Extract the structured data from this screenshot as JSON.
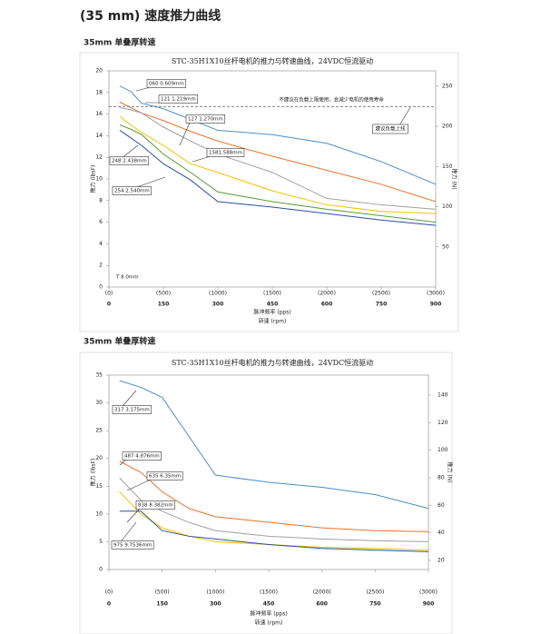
{
  "header": {
    "title": "(35 mm) 速度推力曲线"
  },
  "chart_data": [
    {
      "type": "line",
      "subtitle": "35mm 单叠厚转速",
      "title": "STC-35H1X10丝杆电机的推力与转速曲线，24VDC恒流驱动",
      "x_label": "脉冲频率 (pps)",
      "x2_label": "转速 (rpm)",
      "y_label": "推力 (lbsF)",
      "y2_label": "推力 (N)",
      "x": [
        100,
        200,
        300,
        500,
        750,
        1000,
        1500,
        2000,
        2500,
        3000
      ],
      "xlim": [
        0,
        3000
      ],
      "xticks": [
        {
          "value": 0,
          "label": "(0)"
        },
        {
          "value": 500,
          "label": "(500)"
        },
        {
          "value": 1000,
          "label": "(1000)"
        },
        {
          "value": 1500,
          "label": "(1500)"
        },
        {
          "value": 2000,
          "label": "(2000)"
        },
        {
          "value": 2500,
          "label": "(2500)"
        },
        {
          "value": 3000,
          "label": "(3000)"
        }
      ],
      "x2lim": [
        0,
        900
      ],
      "x2ticks": [
        0,
        150,
        300,
        450,
        600,
        750,
        900
      ],
      "ylim": [
        0,
        20
      ],
      "yticks": [
        0,
        2,
        4,
        6,
        8,
        10,
        12,
        14,
        16,
        18,
        20
      ],
      "y2lim": [
        0,
        269
      ],
      "y2ticks": [
        50,
        100,
        150,
        200,
        250
      ],
      "series": [
        {
          "name": "060 0.609mm",
          "color": "#4a8fc8",
          "values": [
            18.6,
            18.1,
            17.0,
            16.5,
            15.5,
            14.5,
            14.1,
            13.3,
            11.6,
            9.5
          ]
        },
        {
          "name": "121 1.219mm",
          "color": "#e8742a",
          "values": [
            17.1,
            16.6,
            16.1,
            15.4,
            14.4,
            13.5,
            12.1,
            10.8,
            9.5,
            7.9
          ]
        },
        {
          "name": "127 1.270mm",
          "color": "#a0a0a0",
          "values": [
            16.6,
            16.4,
            16.1,
            14.8,
            13.5,
            12.3,
            10.6,
            8.2,
            7.6,
            7.2
          ]
        },
        {
          "name": "1581.588mm",
          "color": "#f2c200",
          "values": [
            15.8,
            15.0,
            14.3,
            13.1,
            11.4,
            10.6,
            8.9,
            7.6,
            7.0,
            6.8
          ]
        },
        {
          "name": "248 2.438mm",
          "color": "#5a9a3a",
          "values": [
            15.0,
            14.6,
            14.1,
            12.3,
            10.6,
            8.8,
            7.9,
            7.2,
            6.6,
            6.0
          ]
        },
        {
          "name": "254 2.540mm",
          "color": "#2c4ea0",
          "values": [
            14.5,
            13.8,
            13.1,
            11.4,
            9.9,
            7.9,
            7.4,
            6.8,
            6.2,
            5.7
          ]
        }
      ],
      "reference_line": {
        "value": 16.7,
        "label": "不建议在负载上限使用，会减少电机的使用寿命",
        "note": "建议负载上线"
      },
      "annotations": [
        "T 8.0mm"
      ]
    },
    {
      "type": "line",
      "subtitle": "35mm 单叠厚转速",
      "title": "STC-35H1X10丝杆电机的推力与转速曲线，24VDC恒流驱动",
      "x_label": "脉冲频率 (pps)",
      "x2_label": "转速 (rpm)",
      "y_label": "推力 (lbsF)",
      "y2_label": "推力 (N)",
      "x": [
        100,
        300,
        500,
        750,
        1000,
        1500,
        2000,
        2500,
        3000
      ],
      "xlim": [
        0,
        3000
      ],
      "xticks": [
        {
          "value": 0,
          "label": "(0)"
        },
        {
          "value": 500,
          "label": "(500)"
        },
        {
          "value": 1000,
          "label": "(1000)"
        },
        {
          "value": 1500,
          "label": "(1500)"
        },
        {
          "value": 2000,
          "label": "(2000)"
        },
        {
          "value": 2500,
          "label": "(2500)"
        },
        {
          "value": 3000,
          "label": "(3000)"
        }
      ],
      "x2lim": [
        0,
        900
      ],
      "x2ticks": [
        0,
        150,
        300,
        450,
        600,
        750,
        900
      ],
      "ylim": [
        0,
        35
      ],
      "yticks": [
        0,
        5,
        10,
        15,
        20,
        25,
        30,
        35
      ],
      "y2lim": [
        13.4,
        154.5
      ],
      "y2ticks": [
        20,
        40,
        60,
        80,
        100,
        120,
        140
      ],
      "series": [
        {
          "name": "317 3.175mm",
          "color": "#4a8fc8",
          "values": [
            34,
            32.8,
            31,
            24,
            17,
            15.7,
            14.8,
            13.5,
            11
          ]
        },
        {
          "name": "487 4.876mm",
          "color": "#e8742a",
          "values": [
            19.5,
            17.5,
            14,
            11,
            9.5,
            8.5,
            7.5,
            7,
            6.8
          ]
        },
        {
          "name": "635 6.35mm",
          "color": "#a0a0a0",
          "values": [
            16.5,
            12.5,
            10.5,
            8.5,
            7,
            6,
            5.5,
            5.2,
            5
          ]
        },
        {
          "name": "838 8.382mm",
          "color": "#f2c200",
          "values": [
            14,
            10,
            7.5,
            6,
            5,
            4.5,
            4,
            3.8,
            3.5
          ]
        },
        {
          "name": "975 9.7536mm",
          "color": "#2c4ea0",
          "values": [
            10.5,
            10.5,
            7,
            6,
            5.5,
            4.5,
            3.8,
            3.5,
            3.2
          ]
        }
      ]
    }
  ]
}
